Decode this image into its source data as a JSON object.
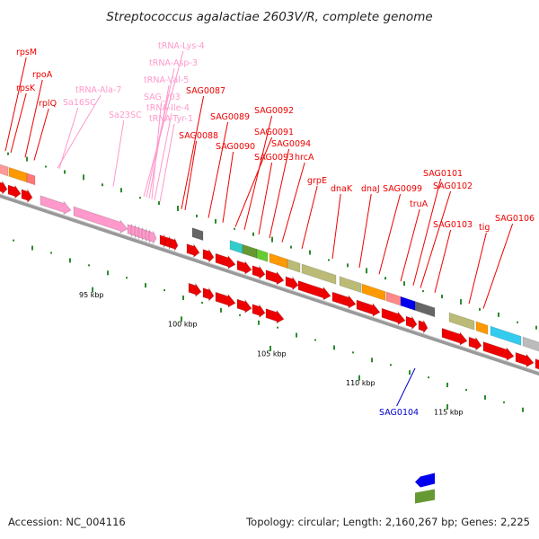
{
  "title": "Streptococcus agalactiae 2603V/R, complete genome",
  "footer": {
    "accession": "Accession: NC_004116",
    "summary": "Topology: circular; Length: 2,160,267 bp; Genes: 2,225"
  },
  "colors": {
    "cds_forward": "#ee0000",
    "rna_genes": "#ff99cc",
    "backbone": "#999999",
    "gc_ticks": "#2d8a2d",
    "reverse_gene_label": "#0000cc"
  },
  "scale_ticks": [
    "95 kbp",
    "100 kbp",
    "105 kbp",
    "110 kbp",
    "115 kbp"
  ],
  "gene_labels": {
    "rna": [
      "tRNA-Lys-4",
      "tRNA-Asp-3",
      "tRNA-Val-5",
      "SAG_r03",
      "tRNA-Ile-4",
      "tRNA-Tyr-1",
      "tRNA-Ala-7",
      "Sa16SC",
      "Sa23SC"
    ],
    "forward": [
      "rpsM",
      "rpoA",
      "rpsK",
      "rplQ",
      "SAG0087",
      "SAG0088",
      "SAG0089",
      "SAG0090",
      "SAG0091",
      "SAG0092",
      "SAG0093",
      "SAG0094",
      "hrcA",
      "grpE",
      "dnaK",
      "dnaJ",
      "SAG0099",
      "truA",
      "SAG0101",
      "SAG0102",
      "SAG0103",
      "tig",
      "SAG0106"
    ],
    "reverse": [
      "SAG0104"
    ]
  }
}
